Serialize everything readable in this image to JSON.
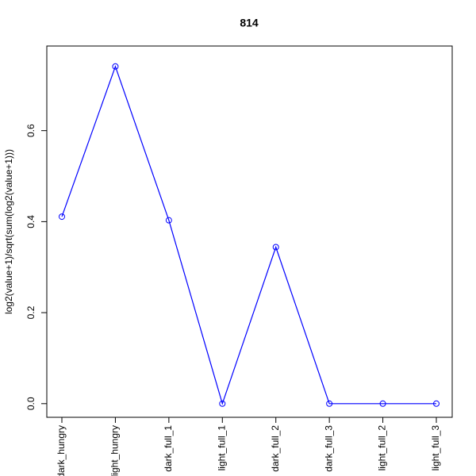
{
  "chart_data": {
    "type": "line",
    "title": "814",
    "y_label": "log2(value+1)/sqrt(sum(log2(value+1)))",
    "categories": [
      "dark_hungry",
      "light_hungry",
      "dark_full_1",
      "light_full_1",
      "dark_full_2",
      "dark_full_3",
      "light_full_2",
      "light_full_3"
    ],
    "series": [
      {
        "color": "#0000ff",
        "values": [
          0.411,
          0.741,
          0.403,
          0,
          0.344,
          0,
          0,
          0
        ]
      }
    ],
    "ylim": [
      -0.03,
      0.786
    ],
    "yticks": [
      {
        "value": 0,
        "label": "0.0"
      },
      0.2,
      0.4,
      0.6
    ]
  }
}
